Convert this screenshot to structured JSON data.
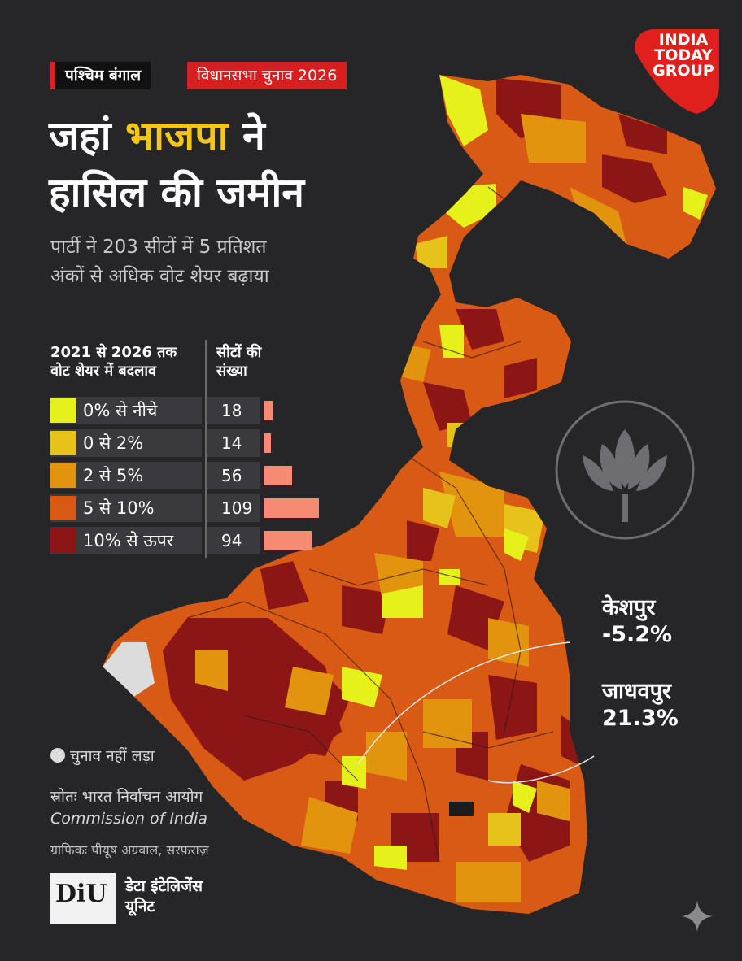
{
  "header": {
    "region_tag": "पश्चिम बंगाल",
    "election_tag": "विधानसभा चुनाव 2026",
    "title_line1_a": "जहां ",
    "title_line1_accent": "भाजपा",
    "title_line1_b": " ने",
    "title_line2": "हासिल की जमीन",
    "subtitle_line1": "पार्टी ने 203 सीटों में 5 प्रतिशत",
    "subtitle_line2": "अंकों से अधिक वोट शेयर बढ़ाया"
  },
  "logo": {
    "line1": "INDIA",
    "line2": "TODAY",
    "line3": "GROUP",
    "color": "#e0201c"
  },
  "legend": {
    "header_left_line1": "2021 से 2026 तक",
    "header_left_line2": "वोट शेयर में बदलाव",
    "header_right_line1": "सीटों की",
    "header_right_line2": "संख्या",
    "bar_color": "#f78a72",
    "rows": [
      {
        "label": "0% से नीचे",
        "count": "18",
        "value": 18,
        "color": "#e6f11c"
      },
      {
        "label": "0 से 2%",
        "count": "14",
        "value": 14,
        "color": "#e6c21a"
      },
      {
        "label": "2 से 5%",
        "count": "56",
        "value": 56,
        "color": "#e2940f"
      },
      {
        "label": "5 से 10%",
        "count": "109",
        "value": 109,
        "color": "#d85a14"
      },
      {
        "label": "10% से ऊपर",
        "count": "94",
        "value": 94,
        "color": "#8c1616"
      }
    ]
  },
  "callouts": {
    "keshpur_name": "केशपुर",
    "keshpur_value": "-5.2%",
    "jadavpur_name": "जाधवपुर",
    "jadavpur_value": "21.3%"
  },
  "not_contested": {
    "label": "चुनाव नहीं लड़ा",
    "color": "#dcdcdc"
  },
  "source": {
    "line1": "स्रोतः भारत निर्वाचन आयोग",
    "line2": "Commission of India",
    "graphic_credit": "ग्राफिकः पीयूष अग्रवाल, सरफ़राज़"
  },
  "diu": {
    "logo_text": "DiU",
    "name_line1": "डेटा इंटेलिजेंस",
    "name_line2": "यूनिट"
  },
  "icons": {
    "party_symbol": "lotus-icon",
    "sparkle": "sparkle-icon"
  }
}
